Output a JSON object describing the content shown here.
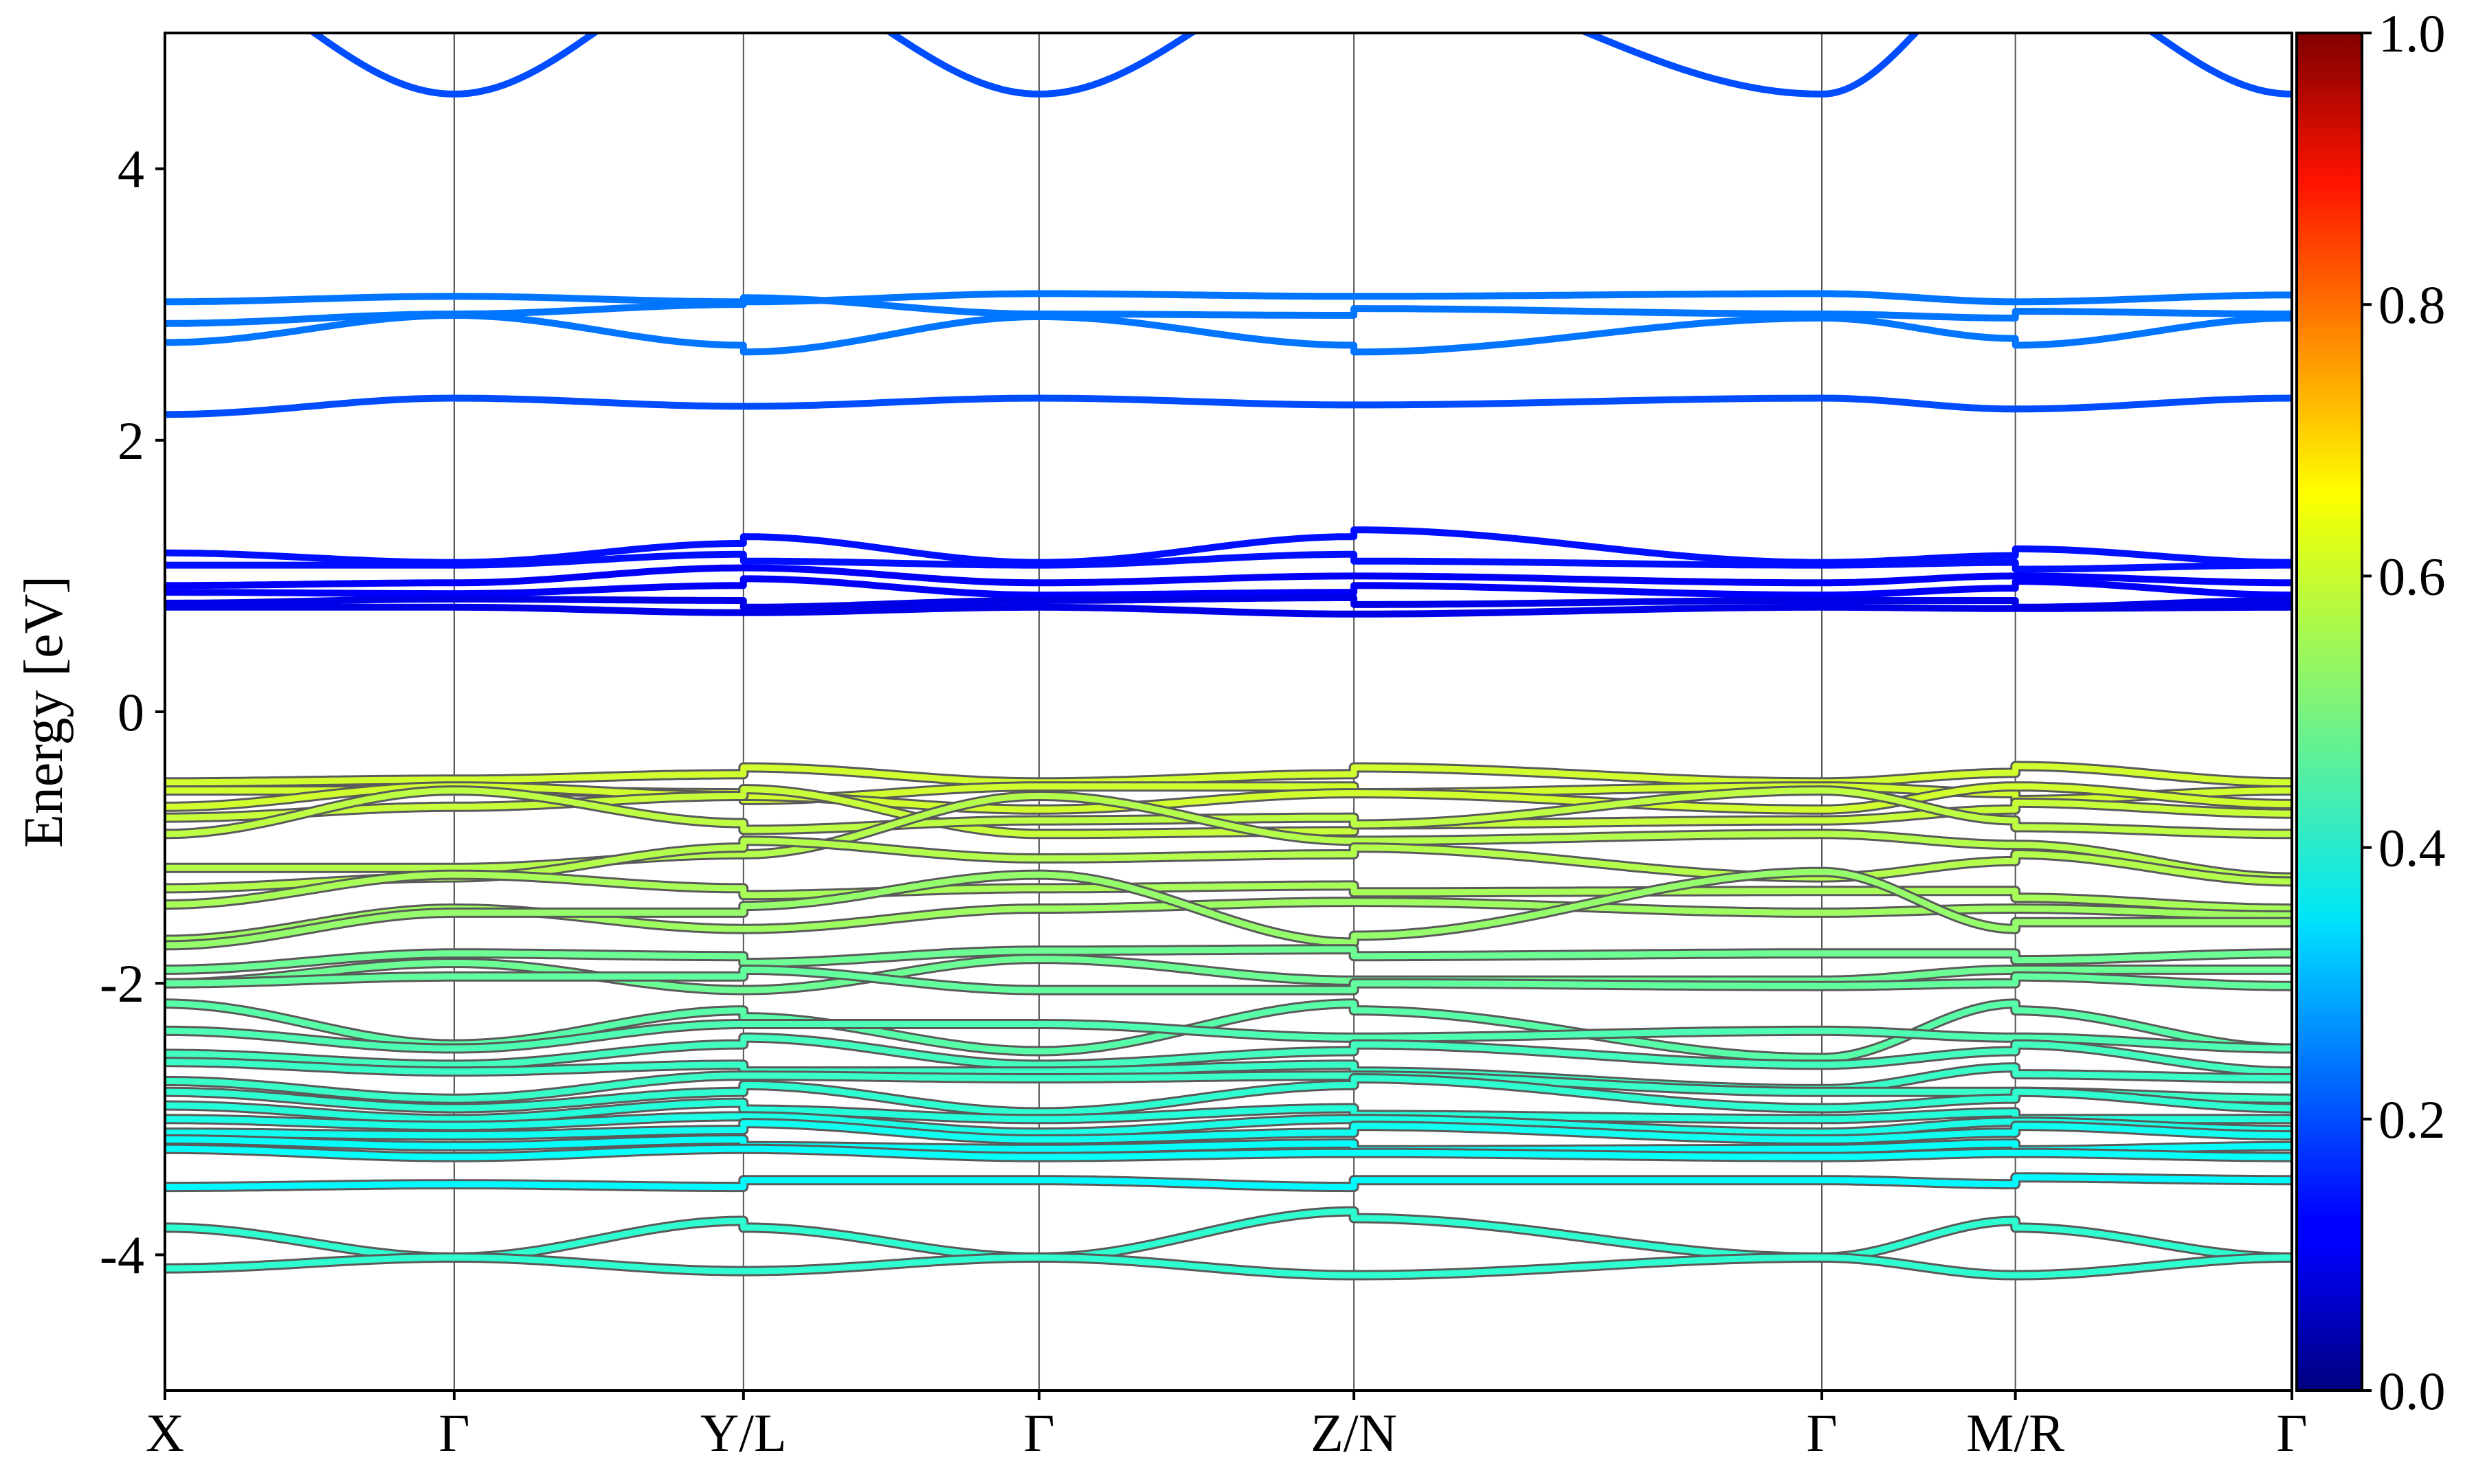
{
  "chart_data": {
    "type": "line",
    "ylabel": "Energy [eV]",
    "xlabel": "",
    "ylim": [
      -5,
      5
    ],
    "y_ticks": [
      {
        "value": -4,
        "label": "-4"
      },
      {
        "value": -2,
        "label": "-2"
      },
      {
        "value": 0,
        "label": "0"
      },
      {
        "value": 2,
        "label": "2"
      },
      {
        "value": 4,
        "label": "4"
      }
    ],
    "kpath_labels": [
      "X",
      "Γ",
      "Y/L",
      "Γ",
      "Z/N",
      "Γ",
      "M/R",
      "Γ"
    ],
    "kpath_positions": [
      0,
      0.136,
      0.272,
      0.411,
      0.559,
      0.779,
      0.87,
      1.0
    ],
    "segment_discontinuities": [
      0.272,
      0.559,
      0.87
    ],
    "grid": "vertical lines at high-symmetry points",
    "colorbar": {
      "colormap": "jet",
      "range": [
        0.0,
        1.0
      ],
      "ticks": [
        {
          "value": 0.0,
          "label": "0.0"
        },
        {
          "value": 0.2,
          "label": "0.2"
        },
        {
          "value": 0.4,
          "label": "0.4"
        },
        {
          "value": 0.6,
          "label": "0.6"
        },
        {
          "value": 0.8,
          "label": "0.8"
        },
        {
          "value": 1.0,
          "label": "1.0"
        }
      ],
      "placement": "right"
    },
    "bands": [
      {
        "weight": 0.2,
        "e": [
          5.5,
          4.55,
          5.5,
          4.55,
          5.5,
          4.55,
          5.5,
          4.55
        ],
        "kind": "cond"
      },
      {
        "weight": 0.24,
        "e": [
          3.02,
          3.06,
          3.02,
          3.08,
          3.06,
          3.08,
          3.02,
          3.07
        ],
        "kind": "cond"
      },
      {
        "weight": 0.24,
        "e": [
          2.86,
          2.93,
          3.0,
          2.93,
          2.92,
          2.93,
          2.9,
          2.93
        ],
        "kind": "cond"
      },
      {
        "weight": 0.24,
        "e": [
          2.72,
          2.92,
          2.7,
          2.91,
          2.7,
          2.9,
          2.75,
          2.9
        ],
        "kind": "cond"
      },
      {
        "weight": 0.2,
        "e": [
          2.19,
          2.31,
          2.25,
          2.31,
          2.26,
          2.31,
          2.23,
          2.31
        ],
        "kind": "cond"
      },
      {
        "weight": 0.14,
        "e": [
          1.17,
          1.1,
          1.24,
          1.1,
          1.29,
          1.1,
          1.15,
          1.1
        ],
        "kind": "cond"
      },
      {
        "weight": 0.14,
        "e": [
          1.08,
          1.08,
          1.16,
          1.08,
          1.16,
          1.08,
          1.1,
          1.08
        ],
        "kind": "cond"
      },
      {
        "weight": 0.12,
        "e": [
          0.93,
          0.95,
          1.06,
          0.95,
          1.0,
          0.95,
          1.0,
          0.95
        ],
        "kind": "cond"
      },
      {
        "weight": 0.12,
        "e": [
          0.88,
          0.87,
          0.93,
          0.86,
          0.88,
          0.86,
          0.91,
          0.86
        ],
        "kind": "cond"
      },
      {
        "weight": 0.1,
        "e": [
          0.8,
          0.83,
          0.82,
          0.82,
          0.84,
          0.82,
          0.82,
          0.82
        ],
        "kind": "cond"
      },
      {
        "weight": 0.1,
        "e": [
          0.77,
          0.77,
          0.73,
          0.77,
          0.72,
          0.77,
          0.76,
          0.77
        ],
        "kind": "cond"
      },
      {
        "weight": 0.58,
        "e": [
          -0.52,
          -0.5,
          -0.46,
          -0.52,
          -0.46,
          -0.52,
          -0.45,
          -0.52
        ],
        "kind": "val"
      },
      {
        "weight": 0.58,
        "e": [
          -0.58,
          -0.58,
          -0.6,
          -0.55,
          -0.55,
          -0.55,
          -0.6,
          -0.58
        ],
        "kind": "val"
      },
      {
        "weight": 0.58,
        "e": [
          -0.7,
          -0.55,
          -0.62,
          -0.72,
          -0.6,
          -0.72,
          -0.55,
          -0.68
        ],
        "kind": "val"
      },
      {
        "weight": 0.57,
        "e": [
          -0.78,
          -0.7,
          -0.62,
          -0.9,
          -0.88,
          -0.8,
          -0.72,
          -0.75
        ],
        "kind": "val"
      },
      {
        "weight": 0.56,
        "e": [
          -0.9,
          -0.58,
          -0.82,
          -0.8,
          -0.78,
          -0.58,
          -0.8,
          -0.9
        ],
        "kind": "val"
      },
      {
        "weight": 0.55,
        "e": [
          -1.15,
          -1.15,
          -1.05,
          -0.62,
          -0.95,
          -0.9,
          -0.98,
          -1.22
        ],
        "kind": "val"
      },
      {
        "weight": 0.55,
        "e": [
          -1.3,
          -1.22,
          -1.0,
          -1.08,
          -1.05,
          -1.22,
          -1.1,
          -1.25
        ],
        "kind": "val"
      },
      {
        "weight": 0.54,
        "e": [
          -1.42,
          -1.2,
          -1.3,
          -1.3,
          -1.28,
          -1.32,
          -1.32,
          -1.45
        ],
        "kind": "val"
      },
      {
        "weight": 0.53,
        "e": [
          -1.68,
          -1.45,
          -1.6,
          -1.45,
          -1.4,
          -1.48,
          -1.45,
          -1.5
        ],
        "kind": "val"
      },
      {
        "weight": 0.52,
        "e": [
          -1.72,
          -1.48,
          -1.48,
          -1.2,
          -1.7,
          -1.18,
          -1.6,
          -1.55
        ],
        "kind": "val"
      },
      {
        "weight": 0.48,
        "e": [
          -1.9,
          -1.78,
          -1.8,
          -1.76,
          -1.75,
          -1.78,
          -1.78,
          -1.78
        ],
        "kind": "val"
      },
      {
        "weight": 0.48,
        "e": [
          -2.0,
          -1.85,
          -2.05,
          -1.82,
          -1.98,
          -1.98,
          -1.9,
          -1.9
        ],
        "kind": "val"
      },
      {
        "weight": 0.47,
        "e": [
          -2.0,
          -1.95,
          -1.95,
          -2.05,
          -2.05,
          -2.02,
          -2.0,
          -2.02
        ],
        "kind": "val"
      },
      {
        "weight": 0.46,
        "e": [
          -2.15,
          -2.45,
          -2.2,
          -2.5,
          -2.15,
          -2.55,
          -2.15,
          -2.48
        ],
        "kind": "val"
      },
      {
        "weight": 0.45,
        "e": [
          -2.35,
          -2.48,
          -2.3,
          -2.3,
          -2.4,
          -2.35,
          -2.4,
          -2.48
        ],
        "kind": "val"
      },
      {
        "weight": 0.44,
        "e": [
          -2.52,
          -2.6,
          -2.45,
          -2.6,
          -2.5,
          -2.6,
          -2.5,
          -2.65
        ],
        "kind": "val"
      },
      {
        "weight": 0.43,
        "e": [
          -2.58,
          -2.65,
          -2.6,
          -2.65,
          -2.6,
          -2.78,
          -2.62,
          -2.7
        ],
        "kind": "val"
      },
      {
        "weight": 0.43,
        "e": [
          -2.72,
          -2.85,
          -2.68,
          -2.7,
          -2.68,
          -2.8,
          -2.8,
          -2.85
        ],
        "kind": "val"
      },
      {
        "weight": 0.42,
        "e": [
          -2.8,
          -2.92,
          -2.8,
          -2.95,
          -2.75,
          -2.92,
          -2.85,
          -2.92
        ],
        "kind": "val"
      },
      {
        "weight": 0.41,
        "e": [
          -2.9,
          -3.0,
          -2.88,
          -3.0,
          -2.92,
          -3.0,
          -2.95,
          -3.0
        ],
        "kind": "val"
      },
      {
        "weight": 0.4,
        "e": [
          -3.0,
          -3.05,
          -2.98,
          -3.1,
          -3.0,
          -3.1,
          -3.02,
          -3.08
        ],
        "kind": "val"
      },
      {
        "weight": 0.39,
        "e": [
          -3.1,
          -3.12,
          -3.08,
          -3.15,
          -3.1,
          -3.15,
          -3.1,
          -3.12
        ],
        "kind": "val"
      },
      {
        "weight": 0.38,
        "e": [
          -3.15,
          -3.2,
          -3.15,
          -3.22,
          -3.18,
          -3.22,
          -3.18,
          -3.2
        ],
        "kind": "val"
      },
      {
        "weight": 0.38,
        "e": [
          -3.22,
          -3.28,
          -3.22,
          -3.28,
          -3.25,
          -3.28,
          -3.25,
          -3.28
        ],
        "kind": "val"
      },
      {
        "weight": 0.37,
        "e": [
          -3.5,
          -3.48,
          -3.5,
          -3.45,
          -3.5,
          -3.45,
          -3.48,
          -3.45
        ],
        "kind": "val"
      },
      {
        "weight": 0.42,
        "e": [
          -3.8,
          -4.02,
          -3.75,
          -4.02,
          -3.68,
          -4.02,
          -3.75,
          -4.02
        ],
        "kind": "val"
      },
      {
        "weight": 0.42,
        "e": [
          -4.1,
          -4.02,
          -4.12,
          -4.02,
          -4.15,
          -4.02,
          -4.15,
          -4.02
        ],
        "kind": "val"
      }
    ]
  }
}
